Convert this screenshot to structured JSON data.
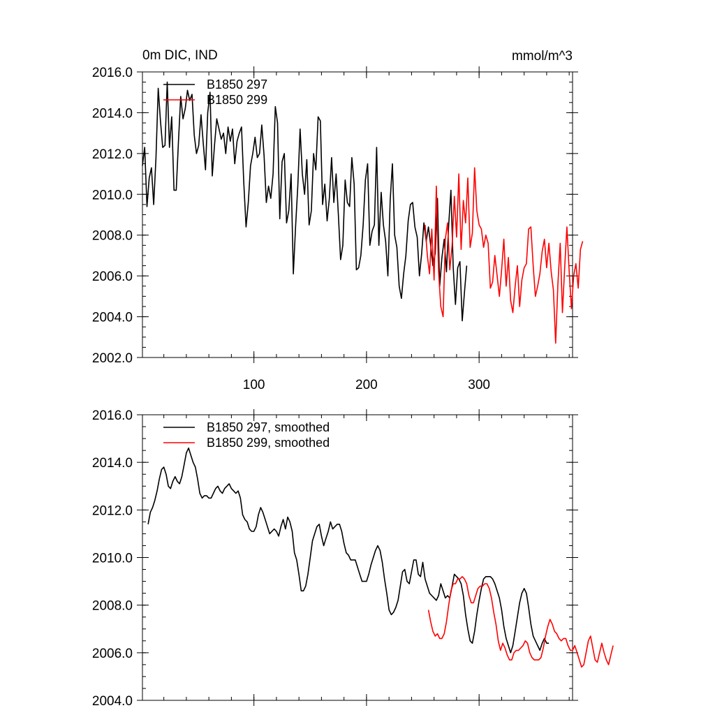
{
  "figure": {
    "title_left": "0m DIC, IND",
    "title_right": "mmol/m^3"
  },
  "chart_data": [
    {
      "type": "line",
      "name": "top",
      "xlim": [
        1,
        383
      ],
      "ylim": [
        2002.0,
        2016.0
      ],
      "x_ticks": [
        100,
        200,
        300
      ],
      "x_tick_labels": [
        "100",
        "200",
        "300"
      ],
      "y_ticks": [
        2002.0,
        2004.0,
        2006.0,
        2008.0,
        2010.0,
        2012.0,
        2014.0,
        2016.0
      ],
      "y_tick_labels": [
        "2002.0",
        "2004.0",
        "2006.0",
        "2008.0",
        "2010.0",
        "2012.0",
        "2014.0",
        "2016.0"
      ],
      "grid": false,
      "legend_position": "top-left",
      "series": [
        {
          "name": "B1850 297",
          "color": "#000000",
          "x_start": 1,
          "x_step": 2,
          "values": [
            2011.4,
            2012.3,
            2009.4,
            2010.8,
            2011.3,
            2009.5,
            2011.8,
            2015.2,
            2013.6,
            2012.3,
            2012.4,
            2015.5,
            2012.3,
            2013.8,
            2010.2,
            2010.2,
            2012.6,
            2014.8,
            2013.7,
            2014.2,
            2015.1,
            2014.6,
            2014.9,
            2012.9,
            2012.0,
            2012.4,
            2013.9,
            2012.5,
            2011.2,
            2014.0,
            2015.0,
            2010.9,
            2012.4,
            2013.7,
            2013.2,
            2012.7,
            2013.0,
            2012.0,
            2013.3,
            2012.6,
            2013.2,
            2011.5,
            2012.6,
            2013.0,
            2013.3,
            2010.6,
            2008.4,
            2009.6,
            2011.4,
            2012.0,
            2012.8,
            2011.8,
            2012.0,
            2013.4,
            2011.9,
            2009.6,
            2010.4,
            2009.8,
            2011.0,
            2014.3,
            2013.5,
            2008.8,
            2011.6,
            2012.0,
            2008.6,
            2009.2,
            2011.0,
            2006.1,
            2008.4,
            2010.4,
            2013.2,
            2011.0,
            2010.0,
            2011.7,
            2008.5,
            2009.2,
            2012.0,
            2011.2,
            2013.8,
            2013.6,
            2009.5,
            2010.5,
            2008.7,
            2009.8,
            2011.8,
            2009.6,
            2011.0,
            2009.0,
            2006.8,
            2007.5,
            2010.7,
            2009.6,
            2009.4,
            2011.8,
            2010.5,
            2006.3,
            2006.4,
            2007.0,
            2008.5,
            2010.7,
            2011.5,
            2007.5,
            2008.2,
            2008.5,
            2012.3,
            2007.5,
            2010.1,
            2008.5,
            2007.7,
            2006.0,
            2009.7,
            2011.5,
            2008.0,
            2007.4,
            2005.5,
            2004.9,
            2006.1,
            2007.0,
            2008.7,
            2009.5,
            2009.6,
            2008.4,
            2007.9,
            2006.0,
            2007.1,
            2008.6,
            2007.7,
            2008.4,
            2007.5,
            2006.5,
            2007.1,
            2009.8,
            2005.5,
            2006.9,
            2007.8,
            2006.2,
            2008.5,
            2010.2,
            2006.4,
            2004.6,
            2006.4,
            2006.7,
            2003.8,
            2005.2,
            2006.5
          ]
        },
        {
          "name": "B1850 299",
          "color": "#ff0000",
          "x_start": 252,
          "x_step": 2,
          "values": [
            2008.5,
            2007.0,
            2006.1,
            2008.3,
            2005.8,
            2010.4,
            2006.2,
            2004.5,
            2004.0,
            2007.8,
            2008.6,
            2006.3,
            2007.5,
            2009.9,
            2007.9,
            2011.0,
            2007.3,
            2009.7,
            2008.6,
            2010.8,
            2007.4,
            2008.1,
            2011.3,
            2009.2,
            2008.5,
            2008.3,
            2007.4,
            2008.0,
            2007.6,
            2005.4,
            2005.7,
            2007.0,
            2006.0,
            2005.0,
            2006.3,
            2007.8,
            2005.5,
            2006.9,
            2004.8,
            2004.2,
            2005.5,
            2006.5,
            2004.5,
            2005.8,
            2006.4,
            2006.6,
            2008.3,
            2008.4,
            2006.5,
            2005.0,
            2005.5,
            2006.1,
            2007.2,
            2007.8,
            2006.4,
            2007.6,
            2006.2,
            2005.3,
            2002.7,
            2005.6,
            2007.6,
            2004.2,
            2006.4,
            2008.4,
            2006.2,
            2004.4,
            2006.0,
            2006.6,
            2005.4,
            2007.3,
            2007.7
          ]
        }
      ]
    },
    {
      "type": "line",
      "name": "bottom",
      "xlim": [
        1,
        383
      ],
      "ylim": [
        2004.0,
        2016.0
      ],
      "x_ticks": [
        100,
        200,
        300
      ],
      "y_ticks": [
        2004.0,
        2006.0,
        2008.0,
        2010.0,
        2012.0,
        2014.0,
        2016.0
      ],
      "y_tick_labels": [
        "2004.0",
        "2006.0",
        "2008.0",
        "2010.0",
        "2012.0",
        "2014.0",
        "2016.0"
      ],
      "grid": false,
      "legend_position": "top-left",
      "series": [
        {
          "name": "B1850 297, smoothed",
          "color": "#000000",
          "x_start": 6,
          "x_step": 2,
          "values": [
            2011.4,
            2011.9,
            2012.1,
            2012.4,
            2012.8,
            2013.3,
            2013.7,
            2013.8,
            2013.5,
            2013.0,
            2012.9,
            2013.2,
            2013.4,
            2013.2,
            2013.1,
            2013.4,
            2013.9,
            2014.4,
            2014.6,
            2014.3,
            2014.0,
            2013.8,
            2013.3,
            2012.7,
            2012.5,
            2012.6,
            2012.6,
            2012.5,
            2012.5,
            2012.7,
            2012.9,
            2013.0,
            2012.8,
            2012.7,
            2012.9,
            2013.0,
            2013.1,
            2012.9,
            2012.8,
            2012.7,
            2012.8,
            2012.5,
            2011.8,
            2011.6,
            2011.5,
            2011.2,
            2011.1,
            2011.1,
            2011.3,
            2011.8,
            2012.1,
            2011.9,
            2011.6,
            2011.3,
            2011.0,
            2011.1,
            2011.2,
            2011.1,
            2010.9,
            2011.3,
            2011.6,
            2011.2,
            2011.7,
            2011.5,
            2011.1,
            2010.2,
            2009.9,
            2009.3,
            2008.6,
            2008.6,
            2008.8,
            2009.3,
            2010.0,
            2010.7,
            2011.0,
            2011.3,
            2011.4,
            2010.9,
            2010.5,
            2010.8,
            2011.1,
            2011.5,
            2011.2,
            2011.3,
            2011.4,
            2011.4,
            2011.1,
            2010.6,
            2010.2,
            2010.1,
            2009.9,
            2009.9,
            2009.9,
            2009.6,
            2009.3,
            2009.0,
            2009.0,
            2009.0,
            2009.3,
            2009.7,
            2010.0,
            2010.3,
            2010.5,
            2010.3,
            2009.8,
            2009.1,
            2008.5,
            2007.8,
            2007.6,
            2007.7,
            2007.9,
            2008.2,
            2008.8,
            2009.4,
            2009.5,
            2009.0,
            2008.9,
            2009.4,
            2009.9,
            2009.9,
            2009.3,
            2009.2,
            2009.8,
            2009.1,
            2008.8,
            2008.5,
            2008.4,
            2008.3,
            2008.2,
            2008.4,
            2008.9,
            2008.6,
            2008.3,
            2008.4,
            2008.3,
            2008.8,
            2009.3,
            2009.2,
            2009.1,
            2008.9,
            2008.4,
            2007.6,
            2007.0,
            2006.5,
            2006.4,
            2006.9,
            2007.6,
            2008.2,
            2008.7,
            2009.1,
            2009.2,
            2009.2,
            2009.2,
            2009.1,
            2008.9,
            2008.6,
            2008.3,
            2007.8,
            2007.1,
            2006.6,
            2006.3,
            2006.0,
            2006.3,
            2006.9,
            2007.5,
            2008.1,
            2008.5,
            2008.7,
            2008.5,
            2007.9,
            2007.2,
            2006.7,
            2006.5,
            2006.3,
            2006.1,
            2006.4,
            2006.6,
            2006.4,
            2006.4
          ]
        },
        {
          "name": "B1850 299, smoothed",
          "color": "#ff0000",
          "x_start": 255,
          "x_step": 2,
          "values": [
            2007.8,
            2007.3,
            2006.9,
            2006.7,
            2006.8,
            2006.6,
            2006.6,
            2006.8,
            2007.3,
            2008.0,
            2008.6,
            2008.9,
            2008.9,
            2009.1,
            2009.1,
            2009.2,
            2009.1,
            2008.9,
            2008.4,
            2008.1,
            2008.1,
            2008.4,
            2008.7,
            2008.8,
            2008.8,
            2008.9,
            2008.9,
            2008.7,
            2008.3,
            2007.7,
            2007.2,
            2006.5,
            2006.1,
            2006.4,
            2006.2,
            2005.9,
            2005.7,
            2005.7,
            2006.0,
            2006.1,
            2006.1,
            2006.2,
            2006.3,
            2006.5,
            2006.4,
            2006.0,
            2005.8,
            2005.7,
            2005.7,
            2005.7,
            2005.8,
            2006.2,
            2006.7,
            2007.1,
            2007.4,
            2007.2,
            2006.9,
            2006.8,
            2006.6,
            2006.5,
            2006.6,
            2006.6,
            2006.3,
            2006.1,
            2006.1,
            2006.3,
            2006.0,
            2005.7,
            2005.4,
            2005.5,
            2006.0,
            2006.5,
            2006.7,
            2006.2,
            2005.7,
            2005.6,
            2006.0,
            2006.4,
            2006.0,
            2005.7,
            2005.5,
            2005.9,
            2006.3
          ]
        }
      ]
    }
  ]
}
